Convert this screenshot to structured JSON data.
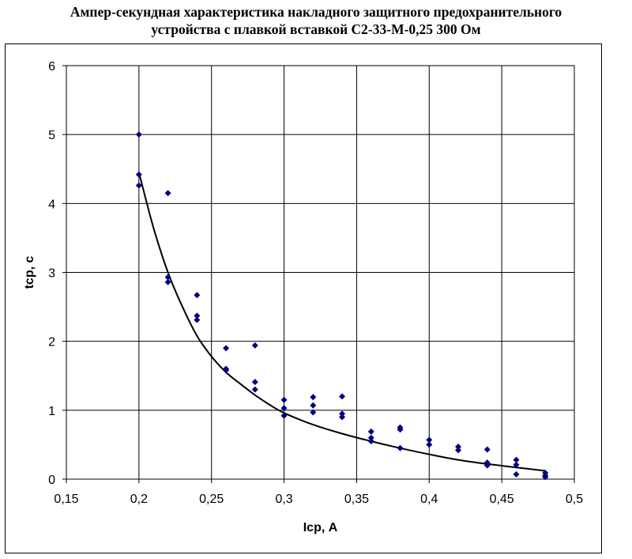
{
  "chart_data": {
    "type": "scatter",
    "title_lines": [
      "Ампер-секундная характеристика накладного защитного предохранительного",
      "устройства с плавкой вставкой С2-33-М-0,25 300 Ом"
    ],
    "xlabel": "Iср, А",
    "ylabel": "tср, с",
    "xlim": [
      0.15,
      0.5
    ],
    "ylim": [
      0,
      6
    ],
    "x_ticks": [
      "0,15",
      "0,2",
      "0,25",
      "0,3",
      "0,35",
      "0,4",
      "0,45",
      "0,5"
    ],
    "y_ticks": [
      "0",
      "1",
      "2",
      "3",
      "4",
      "5",
      "6"
    ],
    "grid": true,
    "legend": false,
    "marker_color": "#000080",
    "curve_color": "#000000",
    "series": [
      {
        "type": "scatter",
        "points": [
          [
            0.2,
            5.0
          ],
          [
            0.2,
            4.42
          ],
          [
            0.2,
            4.26
          ],
          [
            0.22,
            4.15
          ],
          [
            0.22,
            2.93
          ],
          [
            0.22,
            2.86
          ],
          [
            0.24,
            2.67
          ],
          [
            0.24,
            2.37
          ],
          [
            0.24,
            2.31
          ],
          [
            0.26,
            1.9
          ],
          [
            0.26,
            1.6
          ],
          [
            0.26,
            1.58
          ],
          [
            0.28,
            1.94
          ],
          [
            0.28,
            1.41
          ],
          [
            0.28,
            1.3
          ],
          [
            0.3,
            1.15
          ],
          [
            0.3,
            1.03
          ],
          [
            0.3,
            0.92
          ],
          [
            0.32,
            1.19
          ],
          [
            0.32,
            1.07
          ],
          [
            0.32,
            0.97
          ],
          [
            0.34,
            1.2
          ],
          [
            0.34,
            0.95
          ],
          [
            0.34,
            0.9
          ],
          [
            0.36,
            0.69
          ],
          [
            0.36,
            0.6
          ],
          [
            0.36,
            0.55
          ],
          [
            0.38,
            0.75
          ],
          [
            0.38,
            0.72
          ],
          [
            0.38,
            0.45
          ],
          [
            0.4,
            0.57
          ],
          [
            0.4,
            0.5
          ],
          [
            0.42,
            0.47
          ],
          [
            0.42,
            0.42
          ],
          [
            0.44,
            0.43
          ],
          [
            0.44,
            0.24
          ],
          [
            0.44,
            0.2
          ],
          [
            0.46,
            0.28
          ],
          [
            0.46,
            0.21
          ],
          [
            0.46,
            0.07
          ],
          [
            0.48,
            0.09
          ],
          [
            0.48,
            0.05
          ],
          [
            0.48,
            0.03
          ]
        ]
      },
      {
        "type": "line",
        "points": [
          [
            0.2,
            4.45
          ],
          [
            0.21,
            3.65
          ],
          [
            0.22,
            3.0
          ],
          [
            0.23,
            2.5
          ],
          [
            0.24,
            2.08
          ],
          [
            0.25,
            1.78
          ],
          [
            0.26,
            1.55
          ],
          [
            0.27,
            1.38
          ],
          [
            0.28,
            1.22
          ],
          [
            0.29,
            1.08
          ],
          [
            0.3,
            0.96
          ],
          [
            0.32,
            0.79
          ],
          [
            0.34,
            0.66
          ],
          [
            0.36,
            0.55
          ],
          [
            0.38,
            0.45
          ],
          [
            0.4,
            0.36
          ],
          [
            0.42,
            0.28
          ],
          [
            0.44,
            0.22
          ],
          [
            0.46,
            0.17
          ],
          [
            0.48,
            0.12
          ]
        ]
      }
    ]
  }
}
